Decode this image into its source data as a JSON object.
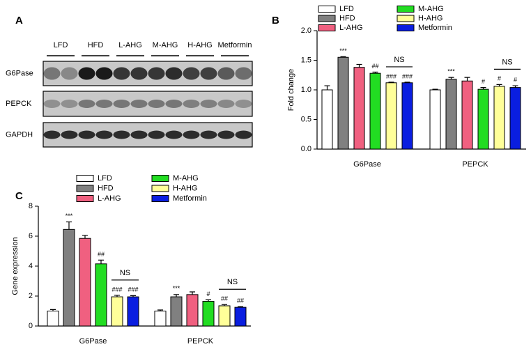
{
  "blot": {
    "panel": "A",
    "groups": [
      "LFD",
      "HFD",
      "L-AHG",
      "M-AHG",
      "H-AHG",
      "Metformin"
    ],
    "rows": [
      "G6Pase",
      "PEPCK",
      "GAPDH"
    ]
  },
  "chart_data": [
    {
      "type": "bar",
      "panel": "B",
      "y_label": "Fold change",
      "categories": [
        "G6Pase",
        "PEPCK"
      ],
      "ylim": [
        0,
        2
      ],
      "yticks": [
        {
          "value": 0,
          "label": "0.0"
        },
        0.5,
        {
          "value": 1,
          "label": "1.0"
        },
        1.5,
        {
          "value": 2,
          "label": "2.0"
        }
      ],
      "series": [
        {
          "name": "LFD",
          "color": "#ffffff",
          "values": [
            1.0,
            1.0
          ],
          "errors": [
            0.07,
            0.01
          ],
          "annotations": [
            null,
            null
          ]
        },
        {
          "name": "HFD",
          "color": "#808080",
          "values": [
            1.55,
            1.18
          ],
          "errors": [
            0.01,
            0.03
          ],
          "annotations": [
            "***",
            "***"
          ]
        },
        {
          "name": "L-AHG",
          "color": "#f06080",
          "values": [
            1.38,
            1.15
          ],
          "errors": [
            0.05,
            0.06
          ],
          "annotations": [
            null,
            null
          ]
        },
        {
          "name": "M-AHG",
          "color": "#22dd22",
          "values": [
            1.28,
            1.01
          ],
          "errors": [
            0.02,
            0.03
          ],
          "annotations": [
            "##",
            "#"
          ]
        },
        {
          "name": "H-AHG",
          "color": "#ffff99",
          "values": [
            1.12,
            1.06
          ],
          "errors": [
            0.01,
            0.03
          ],
          "annotations": [
            "###",
            "#"
          ]
        },
        {
          "name": "Metformin",
          "color": "#0a1ee0",
          "values": [
            1.12,
            1.04
          ],
          "errors": [
            0.01,
            0.03
          ],
          "annotations": [
            "###",
            "#"
          ]
        }
      ],
      "bracket_labels": [
        "NS",
        "NS"
      ]
    },
    {
      "type": "bar",
      "panel": "C",
      "y_label": "Gene expression",
      "categories": [
        "G6Pase",
        "PEPCK"
      ],
      "ylim": [
        0,
        8
      ],
      "yticks": [
        0,
        2,
        4,
        6,
        8
      ],
      "series": [
        {
          "name": "LFD",
          "color": "#ffffff",
          "values": [
            1.0,
            1.0
          ],
          "errors": [
            0.1,
            0.07
          ],
          "annotations": [
            null,
            null
          ]
        },
        {
          "name": "HFD",
          "color": "#808080",
          "values": [
            6.45,
            1.95
          ],
          "errors": [
            0.5,
            0.15
          ],
          "annotations": [
            "***",
            "***"
          ]
        },
        {
          "name": "L-AHG",
          "color": "#f06080",
          "values": [
            5.85,
            2.1
          ],
          "errors": [
            0.2,
            0.18
          ],
          "annotations": [
            null,
            null
          ]
        },
        {
          "name": "M-AHG",
          "color": "#22dd22",
          "values": [
            4.15,
            1.65
          ],
          "errors": [
            0.25,
            0.1
          ],
          "annotations": [
            "##",
            "#"
          ]
        },
        {
          "name": "H-AHG",
          "color": "#ffff99",
          "values": [
            1.95,
            1.35
          ],
          "errors": [
            0.1,
            0.08
          ],
          "annotations": [
            "###",
            "##"
          ]
        },
        {
          "name": "Metformin",
          "color": "#0a1ee0",
          "values": [
            1.95,
            1.25
          ],
          "errors": [
            0.08,
            0.05
          ],
          "annotations": [
            "###",
            "##"
          ]
        }
      ],
      "bracket_labels": [
        "NS",
        "NS"
      ]
    }
  ]
}
